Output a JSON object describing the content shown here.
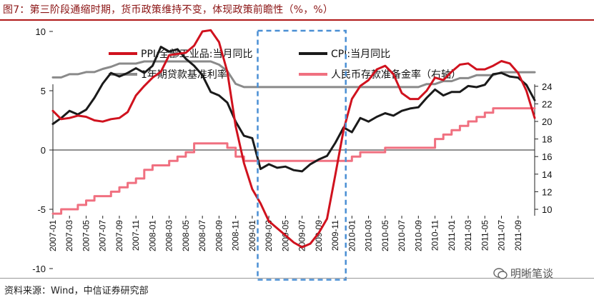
{
  "title": "图7：第三阶段通缩时期，货币政策维持不变，体现政策前瞻性（%，%）",
  "source": "资料来源：Wind，中信证券研究部",
  "watermark": "明晰笔谈",
  "chart_data": {
    "type": "line",
    "x": [
      "2007-01",
      "2007-02",
      "2007-03",
      "2007-04",
      "2007-05",
      "2007-06",
      "2007-07",
      "2007-08",
      "2007-09",
      "2007-10",
      "2007-11",
      "2007-12",
      "2008-01",
      "2008-02",
      "2008-03",
      "2008-04",
      "2008-05",
      "2008-06",
      "2008-07",
      "2008-08",
      "2008-09",
      "2008-10",
      "2008-11",
      "2008-12",
      "2009-01",
      "2009-02",
      "2009-03",
      "2009-04",
      "2009-05",
      "2009-06",
      "2009-07",
      "2009-08",
      "2009-09",
      "2009-10",
      "2009-11",
      "2009-12",
      "2010-01",
      "2010-02",
      "2010-03",
      "2010-04",
      "2010-05",
      "2010-06",
      "2010-07",
      "2010-08",
      "2010-09",
      "2010-10",
      "2010-11",
      "2010-12",
      "2011-01",
      "2011-02",
      "2011-03",
      "2011-04",
      "2011-05",
      "2011-06",
      "2011-07",
      "2011-08",
      "2011-09",
      "2011-10",
      "2011-11"
    ],
    "x_tick_labels": [
      "2007-01",
      "2007-03",
      "2007-05",
      "2007-07",
      "2007-09",
      "2007-11",
      "2008-01",
      "2008-03",
      "2008-05",
      "2008-07",
      "2008-09",
      "2008-11",
      "2009-01",
      "2009-03",
      "2009-05",
      "2009-07",
      "2009-09",
      "2009-11",
      "2010-01",
      "2010-03",
      "2010-05",
      "2010-07",
      "2010-09",
      "2010-11",
      "2011-01",
      "2011-03",
      "2011-05",
      "2011-07",
      "2011-09"
    ],
    "ylim_left": [
      -10,
      12
    ],
    "yticks_left": [
      10,
      5,
      0,
      -5,
      -10
    ],
    "ylim_right": [
      10,
      25
    ],
    "yticks_right": [
      24,
      22,
      20,
      18,
      16,
      14,
      12,
      10
    ],
    "series": [
      {
        "name": "PPI:全部工业品:当月同比",
        "axis": "left",
        "color": "#d0121e",
        "values": [
          3.3,
          2.6,
          2.7,
          2.9,
          2.8,
          2.5,
          2.4,
          2.6,
          2.7,
          3.2,
          4.6,
          5.4,
          6.1,
          6.6,
          8.0,
          8.1,
          8.2,
          8.8,
          10.0,
          10.1,
          9.1,
          6.6,
          2.0,
          -1.1,
          -3.3,
          -4.5,
          -6.0,
          -6.6,
          -7.2,
          -7.8,
          -8.2,
          -7.9,
          -7.0,
          -5.8,
          -2.1,
          1.7,
          4.3,
          5.4,
          5.9,
          6.8,
          7.1,
          6.4,
          4.8,
          4.3,
          4.3,
          5.0,
          6.1,
          5.9,
          6.6,
          7.2,
          7.3,
          6.8,
          6.8,
          7.1,
          7.5,
          7.3,
          6.5,
          5.0,
          2.7
        ]
      },
      {
        "name": "CPI:当月同比",
        "axis": "left",
        "color": "#1a1a1a",
        "values": [
          2.2,
          2.7,
          3.3,
          3.0,
          3.4,
          4.4,
          5.6,
          6.5,
          6.2,
          6.5,
          6.9,
          6.5,
          7.1,
          8.7,
          8.3,
          8.5,
          7.7,
          7.1,
          6.3,
          4.9,
          4.6,
          4.0,
          2.4,
          1.2,
          1.0,
          -1.6,
          -1.2,
          -1.5,
          -1.4,
          -1.7,
          -1.8,
          -1.2,
          -0.8,
          -0.5,
          0.6,
          1.9,
          1.5,
          2.7,
          2.4,
          2.8,
          3.1,
          2.9,
          3.3,
          3.5,
          3.6,
          4.4,
          5.1,
          4.6,
          4.9,
          4.9,
          5.4,
          5.3,
          5.5,
          6.4,
          6.5,
          6.2,
          6.1,
          5.5,
          4.2
        ]
      },
      {
        "name": "1年期贷款基准利率",
        "axis": "left",
        "color": "#8a8a8a",
        "values": [
          6.12,
          6.12,
          6.39,
          6.39,
          6.57,
          6.57,
          6.84,
          7.02,
          7.29,
          7.29,
          7.29,
          7.47,
          7.47,
          7.47,
          7.47,
          7.47,
          7.47,
          7.47,
          7.47,
          7.47,
          7.2,
          6.66,
          5.58,
          5.31,
          5.31,
          5.31,
          5.31,
          5.31,
          5.31,
          5.31,
          5.31,
          5.31,
          5.31,
          5.31,
          5.31,
          5.31,
          5.31,
          5.31,
          5.31,
          5.31,
          5.31,
          5.31,
          5.31,
          5.31,
          5.31,
          5.56,
          5.56,
          5.81,
          5.81,
          6.06,
          6.06,
          6.31,
          6.31,
          6.31,
          6.56,
          6.56,
          6.56,
          6.56,
          6.56
        ]
      },
      {
        "name": "人民币存款准备金率（右轴）",
        "axis": "right",
        "color": "#f07080",
        "values": [
          9.5,
          10.0,
          10.0,
          10.5,
          11.0,
          11.5,
          11.5,
          12.0,
          12.5,
          13.0,
          13.5,
          14.5,
          15.0,
          15.0,
          15.5,
          16.0,
          16.5,
          17.5,
          17.5,
          17.5,
          17.5,
          17.0,
          16.0,
          15.5,
          15.5,
          15.5,
          15.5,
          15.5,
          15.5,
          15.5,
          15.5,
          15.5,
          15.5,
          15.5,
          15.5,
          15.5,
          16.0,
          16.5,
          16.5,
          16.5,
          17.0,
          17.0,
          17.0,
          17.0,
          17.0,
          17.0,
          18.0,
          18.5,
          19.0,
          19.5,
          20.0,
          20.5,
          21.0,
          21.5,
          21.5,
          21.5,
          21.5,
          21.5,
          21.5
        ]
      }
    ],
    "highlight_box": {
      "from": "2009-02",
      "to": "2009-12",
      "ymin": -11,
      "ymax": 10
    }
  }
}
